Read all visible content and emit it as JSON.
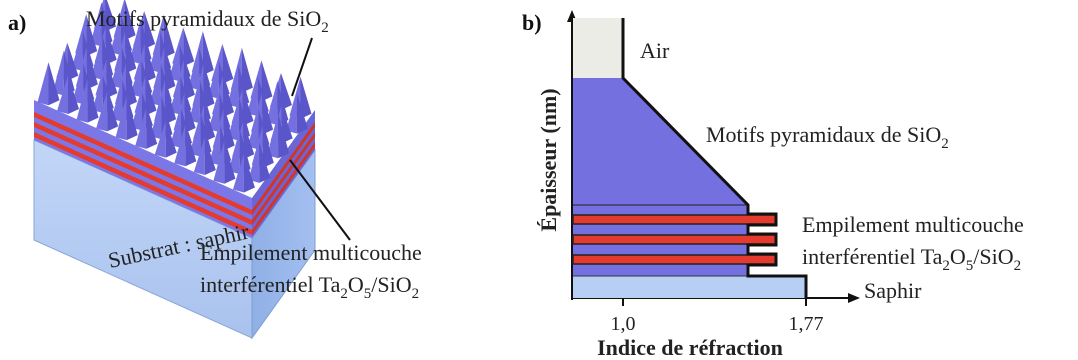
{
  "panel_a": {
    "label": "a)",
    "top_label": "Motifs pyramidaux de SiO",
    "top_label_sub": "2",
    "substrate_label": "Substrat : saphir",
    "stack_label_line1": "Empilement multicouche",
    "stack_label_line2_prefix": "interférentiel Ta",
    "stack_label_sub1": "2",
    "stack_label_mid": "O",
    "stack_label_sub2": "5",
    "stack_label_mid2": "/SiO",
    "stack_label_sub3": "2"
  },
  "panel_b": {
    "label": "b)",
    "y_axis_label": "Épaisseur (nm)",
    "x_axis_label": "Indice de réfraction",
    "tick_1": "1,0",
    "tick_2": "1,77",
    "air_label": "Air",
    "pyramid_label": "Motifs pyramidaux de SiO",
    "pyramid_label_sub": "2",
    "stack_line1": "Empilement multicouche",
    "stack_line2_prefix": "interférentiel Ta",
    "stack_sub1": "2",
    "stack_mid": "O",
    "stack_sub2": "5",
    "stack_mid2": "/SiO",
    "stack_sub3": "2",
    "sapphire_label": "Saphir"
  },
  "colors": {
    "pyramid": "#7570e0",
    "pyramid_dark": "#5a55c8",
    "red_layer": "#e53a2e",
    "substrate": "#b8cff5",
    "air": "#ededE6"
  }
}
